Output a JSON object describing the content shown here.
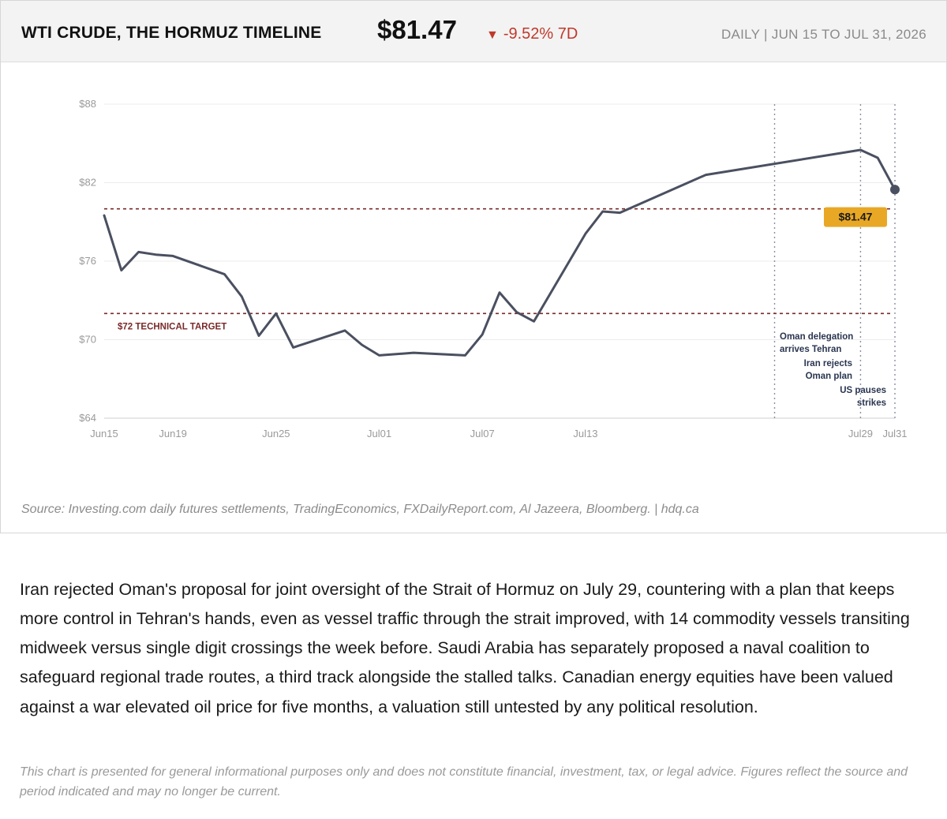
{
  "header": {
    "title": "WTI CRUDE, THE HORMUZ TIMELINE",
    "price": "$81.47",
    "change_arrow": "▼",
    "change": "-9.52% 7D",
    "period": "DAILY  |  JUN 15 TO JUL 31, 2026"
  },
  "colors": {
    "line": "#4a5060",
    "reference": "#7a2a2a",
    "badge": "#e8a825",
    "negative": "#c0392b",
    "event_text": "#2a3550"
  },
  "chart_data": {
    "type": "line",
    "title": "WTI CRUDE, THE HORMUZ TIMELINE",
    "xlabel": "",
    "ylabel": "",
    "x_type": "date",
    "xlim": [
      "2026-06-15",
      "2026-07-31"
    ],
    "ylim": [
      64,
      88
    ],
    "y_ticks": [
      64,
      70,
      76,
      82,
      88
    ],
    "y_tick_labels": [
      "$64",
      "$70",
      "$76",
      "$82",
      "$88"
    ],
    "x_ticks": [
      "2026-06-15",
      "2026-06-19",
      "2026-06-25",
      "2026-07-01",
      "2026-07-07",
      "2026-07-13",
      "2026-07-29",
      "2026-07-31"
    ],
    "x_tick_labels": [
      "Jun15",
      "Jun19",
      "Jun25",
      "Jul01",
      "Jul07",
      "Jul13",
      "Jul29",
      "Jul31"
    ],
    "grid": true,
    "series": [
      {
        "x": [
          "2026-06-15",
          "2026-06-16",
          "2026-06-17",
          "2026-06-18",
          "2026-06-19",
          "2026-06-22",
          "2026-06-23",
          "2026-06-24",
          "2026-06-25",
          "2026-06-26",
          "2026-06-29",
          "2026-06-30",
          "2026-07-01",
          "2026-07-03",
          "2026-07-06",
          "2026-07-07",
          "2026-07-08",
          "2026-07-09",
          "2026-07-10",
          "2026-07-13",
          "2026-07-14",
          "2026-07-15",
          "2026-07-20",
          "2026-07-29",
          "2026-07-30",
          "2026-07-31"
        ],
        "values": [
          79.5,
          75.3,
          76.7,
          76.5,
          76.4,
          75.0,
          73.3,
          70.3,
          72.0,
          69.4,
          70.7,
          69.6,
          68.8,
          69.0,
          68.8,
          70.4,
          73.6,
          72.1,
          71.4,
          78.1,
          79.8,
          79.7,
          82.6,
          84.5,
          83.9,
          81.47
        ]
      }
    ],
    "reference_lines": [
      {
        "value": 80.0,
        "label": ""
      },
      {
        "value": 72.0,
        "label": "$72 TECHNICAL TARGET"
      }
    ],
    "events": [
      {
        "date": "2026-07-24",
        "label_lines": [
          "Oman delegation",
          "arrives Tehran"
        ]
      },
      {
        "date": "2026-07-29",
        "label_lines": [
          "Iran rejects",
          "Oman plan"
        ]
      },
      {
        "date": "2026-07-31",
        "label_lines": [
          "US pauses",
          "strikes"
        ]
      }
    ],
    "last_value_label": "$81.47"
  },
  "source": "Source: Investing.com daily futures settlements, TradingEconomics, FXDailyReport.com, Al Jazeera, Bloomberg.  |  hdq.ca",
  "body_text": "Iran rejected Oman's proposal for joint oversight of the Strait of Hormuz on July 29, countering with a plan that keeps more control in Tehran's hands, even as vessel traffic through the strait improved, with 14 commodity vessels transiting midweek versus single digit crossings the week before. Saudi Arabia has separately proposed a naval coalition to safeguard regional trade routes, a third track alongside the stalled talks. Canadian energy equities have been valued against a war elevated oil price for five months, a valuation still untested by any political resolution.",
  "disclaimer": "This chart is presented for general informational purposes only and does not constitute financial, investment, tax, or legal advice. Figures reflect the source and period indicated and may no longer be current."
}
